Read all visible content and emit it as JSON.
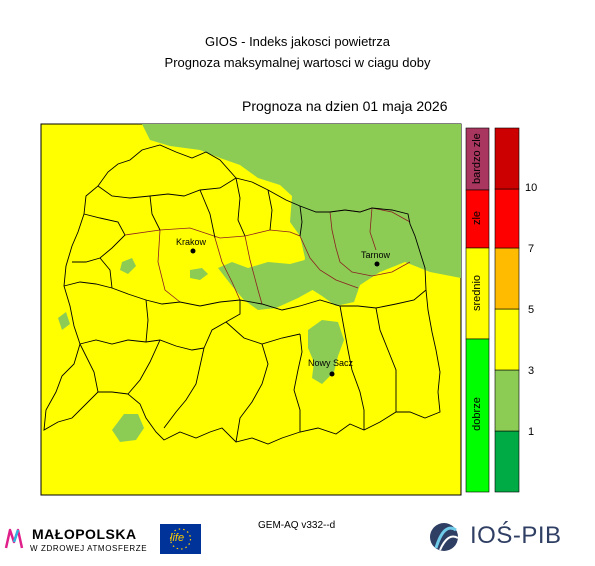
{
  "titles": {
    "line1": "GIOS - Indeks jakosci powietrza",
    "line2": "Prognoza maksymalnej wartosci w ciagu doby",
    "forecast_date": "Prognoza na dzien  01 maja 2026"
  },
  "cities": [
    {
      "name": "Krakow"
    },
    {
      "name": "Tarnow"
    },
    {
      "name": "Nowy Sacz"
    }
  ],
  "legend": {
    "categories": [
      {
        "label": "bardzo zle",
        "color": "#a8365e"
      },
      {
        "label": "zle",
        "color": "#ff0000"
      },
      {
        "label": "srednio",
        "color": "#ffff00"
      },
      {
        "label": "dobrze",
        "color": "#00ff00"
      }
    ],
    "scale_colors": [
      "#00aa44",
      "#8ccc55",
      "#ffff00",
      "#ffbb00",
      "#ff0000",
      "#cc0000"
    ],
    "ticks": [
      "1",
      "3",
      "5",
      "7",
      "10"
    ]
  },
  "colors": {
    "yellow": "#ffff00",
    "green": "#8ccc55"
  },
  "footer": {
    "model": "GEM-AQ v332--d",
    "malopolska": "MAŁOPOLSKA",
    "malopolska_sub": "W ZDROWEJ ATMOSFERZE",
    "eu_logo_text": "life",
    "ios_logo": "IOŚ-PIB"
  }
}
